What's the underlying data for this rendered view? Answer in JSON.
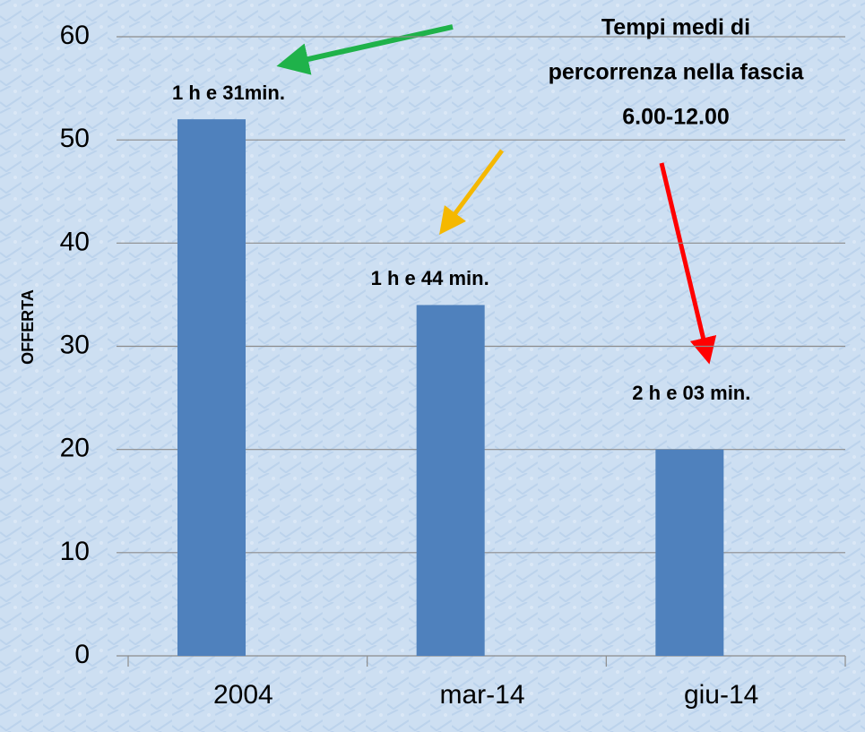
{
  "chart_data": {
    "type": "bar",
    "y_label": "OFFERTA",
    "categories": [
      "2004",
      "mar-14",
      "giu-14"
    ],
    "values": [
      52,
      34,
      20
    ],
    "color": "#4f81bd",
    "ylim": [
      0,
      60
    ],
    "yticks": [
      0,
      10,
      20,
      30,
      40,
      50,
      60
    ],
    "grid": true,
    "bar_annotations": [
      "1 h e 31min.",
      "1 h e 44 min.",
      "2 h e 03 min."
    ],
    "annotation": [
      "Tempi medi di",
      "percorrenza nella fascia",
      "6.00-12.00"
    ]
  }
}
